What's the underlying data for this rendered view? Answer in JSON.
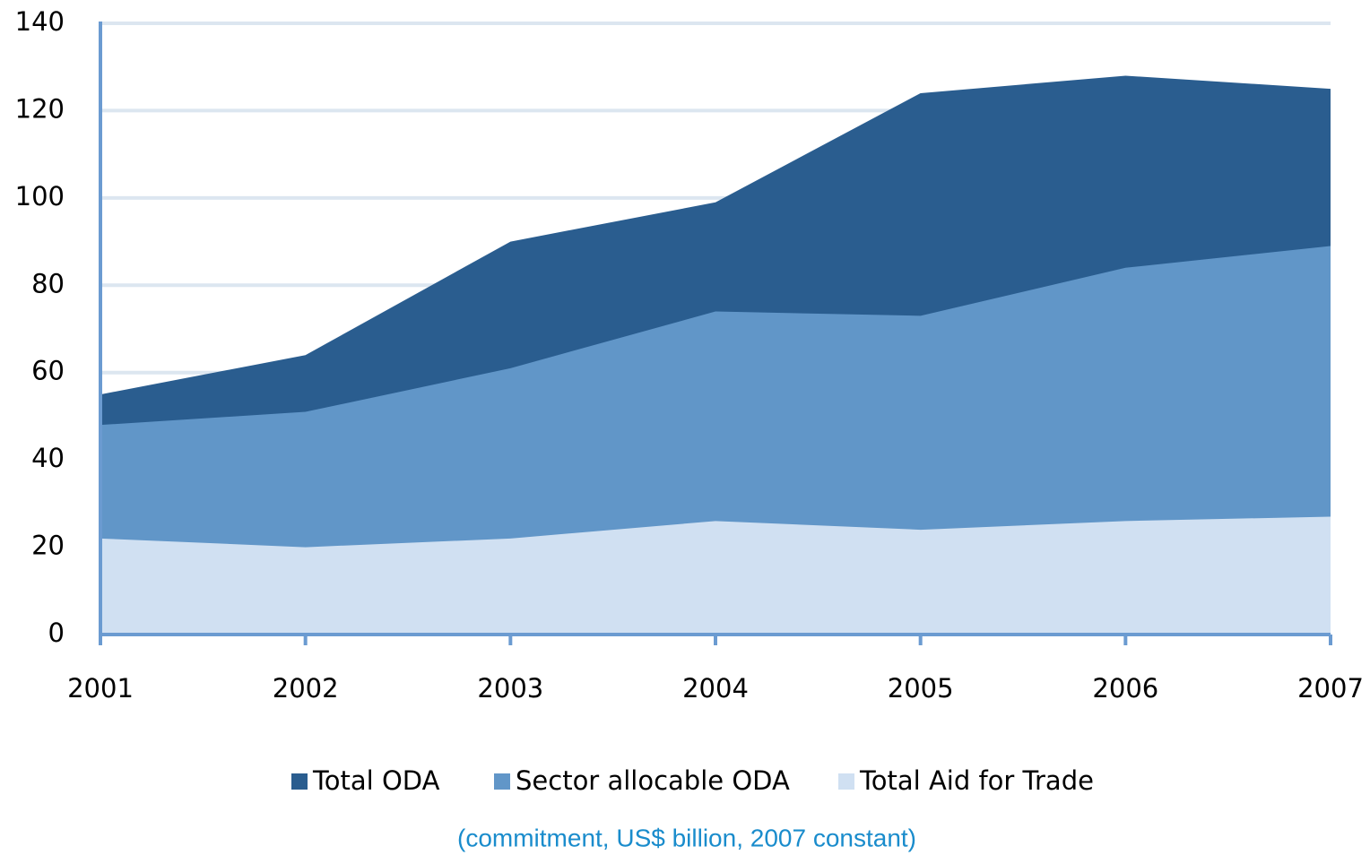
{
  "chart_data": {
    "type": "area",
    "subtitle": "(commitment, US$ billion, 2007 constant)",
    "x": [
      2001,
      2002,
      2003,
      2004,
      2005,
      2006,
      2007
    ],
    "xlim": [
      2001,
      2007
    ],
    "xticks": [
      2001,
      2002,
      2003,
      2004,
      2005,
      2006,
      2007
    ],
    "series": [
      {
        "name": "Total ODA",
        "color": "#2a5d8f",
        "values": [
          55,
          64,
          90,
          99,
          124,
          128,
          125
        ]
      },
      {
        "name": "Sector allocable ODA",
        "color": "#6196c8",
        "values": [
          48,
          51,
          61,
          74,
          73,
          84,
          89
        ]
      },
      {
        "name": "Total Aid for Trade",
        "color": "#d0e0f2",
        "values": [
          22,
          20,
          22,
          26,
          24,
          26,
          27
        ]
      }
    ],
    "ylim": [
      0,
      140
    ],
    "yticks": [
      0,
      20,
      40,
      60,
      80,
      100,
      120,
      140
    ],
    "grid": true,
    "legend": "bottom"
  }
}
